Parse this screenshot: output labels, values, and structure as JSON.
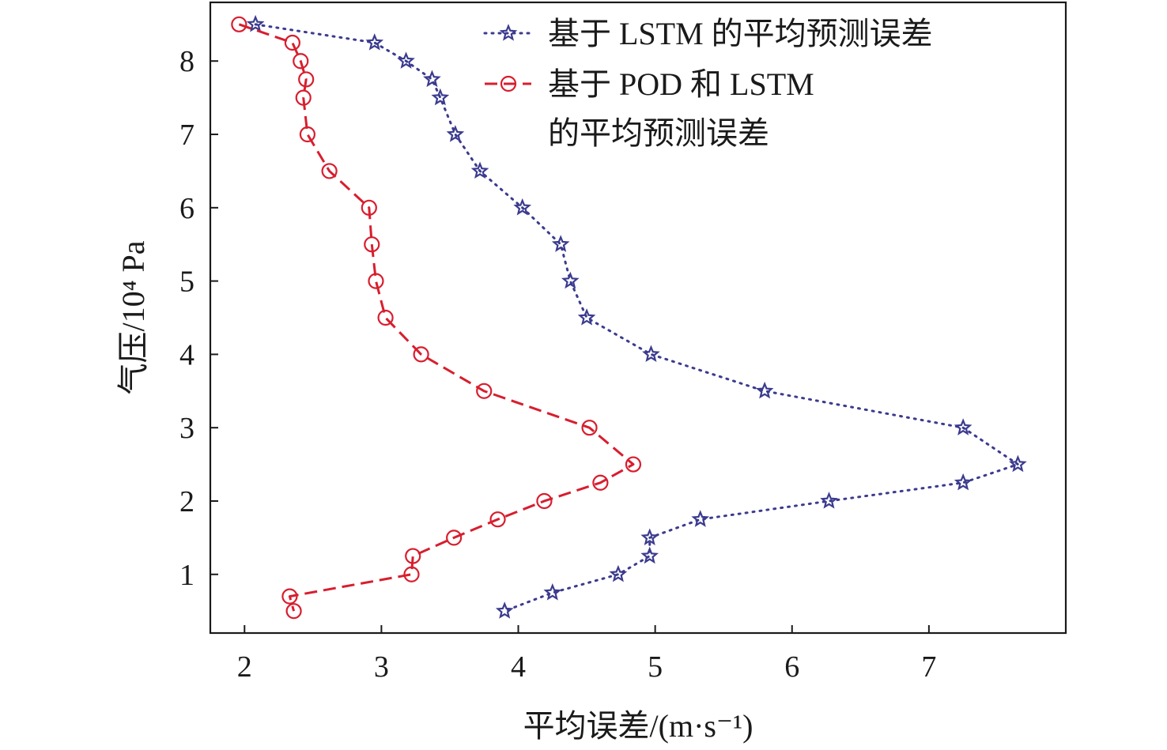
{
  "chart_data": {
    "type": "line",
    "xlabel": "平均误差/(m·s⁻¹)",
    "ylabel": "气压/10⁴ Pa",
    "xlim": [
      1.75,
      8.0
    ],
    "ylim": [
      0.2,
      8.8
    ],
    "xticks": [
      2,
      3,
      4,
      5,
      6,
      7
    ],
    "yticks": [
      1,
      2,
      3,
      4,
      5,
      6,
      7,
      8
    ],
    "grid": false,
    "legend_position": "top-right",
    "series": [
      {
        "name": "基于 LSTM 的平均预测误差",
        "color": "#3b3b8f",
        "line_style": "dotted",
        "marker": "star",
        "points": [
          {
            "x": 2.08,
            "y": 8.5
          },
          {
            "x": 2.95,
            "y": 8.25
          },
          {
            "x": 3.18,
            "y": 8.0
          },
          {
            "x": 3.37,
            "y": 7.75
          },
          {
            "x": 3.43,
            "y": 7.5
          },
          {
            "x": 3.54,
            "y": 7.0
          },
          {
            "x": 3.72,
            "y": 6.5
          },
          {
            "x": 4.03,
            "y": 6.0
          },
          {
            "x": 4.31,
            "y": 5.5
          },
          {
            "x": 4.38,
            "y": 5.0
          },
          {
            "x": 4.5,
            "y": 4.5
          },
          {
            "x": 4.97,
            "y": 4.0
          },
          {
            "x": 5.8,
            "y": 3.5
          },
          {
            "x": 7.25,
            "y": 3.0
          },
          {
            "x": 7.65,
            "y": 2.5
          },
          {
            "x": 7.25,
            "y": 2.25
          },
          {
            "x": 6.27,
            "y": 2.0
          },
          {
            "x": 5.33,
            "y": 1.75
          },
          {
            "x": 4.96,
            "y": 1.5
          },
          {
            "x": 4.96,
            "y": 1.25
          },
          {
            "x": 4.73,
            "y": 1.0
          },
          {
            "x": 4.25,
            "y": 0.75
          },
          {
            "x": 3.9,
            "y": 0.5
          }
        ]
      },
      {
        "name": "基于 POD 和 LSTM 的平均预测误差",
        "name_lines": [
          "基于 POD 和 LSTM",
          "的平均预测误差"
        ],
        "color": "#d81e2e",
        "line_style": "dashed",
        "marker": "circle",
        "points": [
          {
            "x": 1.96,
            "y": 8.5
          },
          {
            "x": 2.35,
            "y": 8.25
          },
          {
            "x": 2.41,
            "y": 8.0
          },
          {
            "x": 2.45,
            "y": 7.75
          },
          {
            "x": 2.43,
            "y": 7.5
          },
          {
            "x": 2.46,
            "y": 7.0
          },
          {
            "x": 2.62,
            "y": 6.5
          },
          {
            "x": 2.91,
            "y": 6.0
          },
          {
            "x": 2.93,
            "y": 5.5
          },
          {
            "x": 2.96,
            "y": 5.0
          },
          {
            "x": 3.03,
            "y": 4.5
          },
          {
            "x": 3.29,
            "y": 4.0
          },
          {
            "x": 3.75,
            "y": 3.5
          },
          {
            "x": 4.52,
            "y": 3.0
          },
          {
            "x": 4.84,
            "y": 2.5
          },
          {
            "x": 4.6,
            "y": 2.25
          },
          {
            "x": 4.19,
            "y": 2.0
          },
          {
            "x": 3.85,
            "y": 1.75
          },
          {
            "x": 3.53,
            "y": 1.5
          },
          {
            "x": 3.23,
            "y": 1.25
          },
          {
            "x": 3.22,
            "y": 1.0
          },
          {
            "x": 2.33,
            "y": 0.7
          },
          {
            "x": 2.36,
            "y": 0.5
          }
        ]
      }
    ]
  }
}
